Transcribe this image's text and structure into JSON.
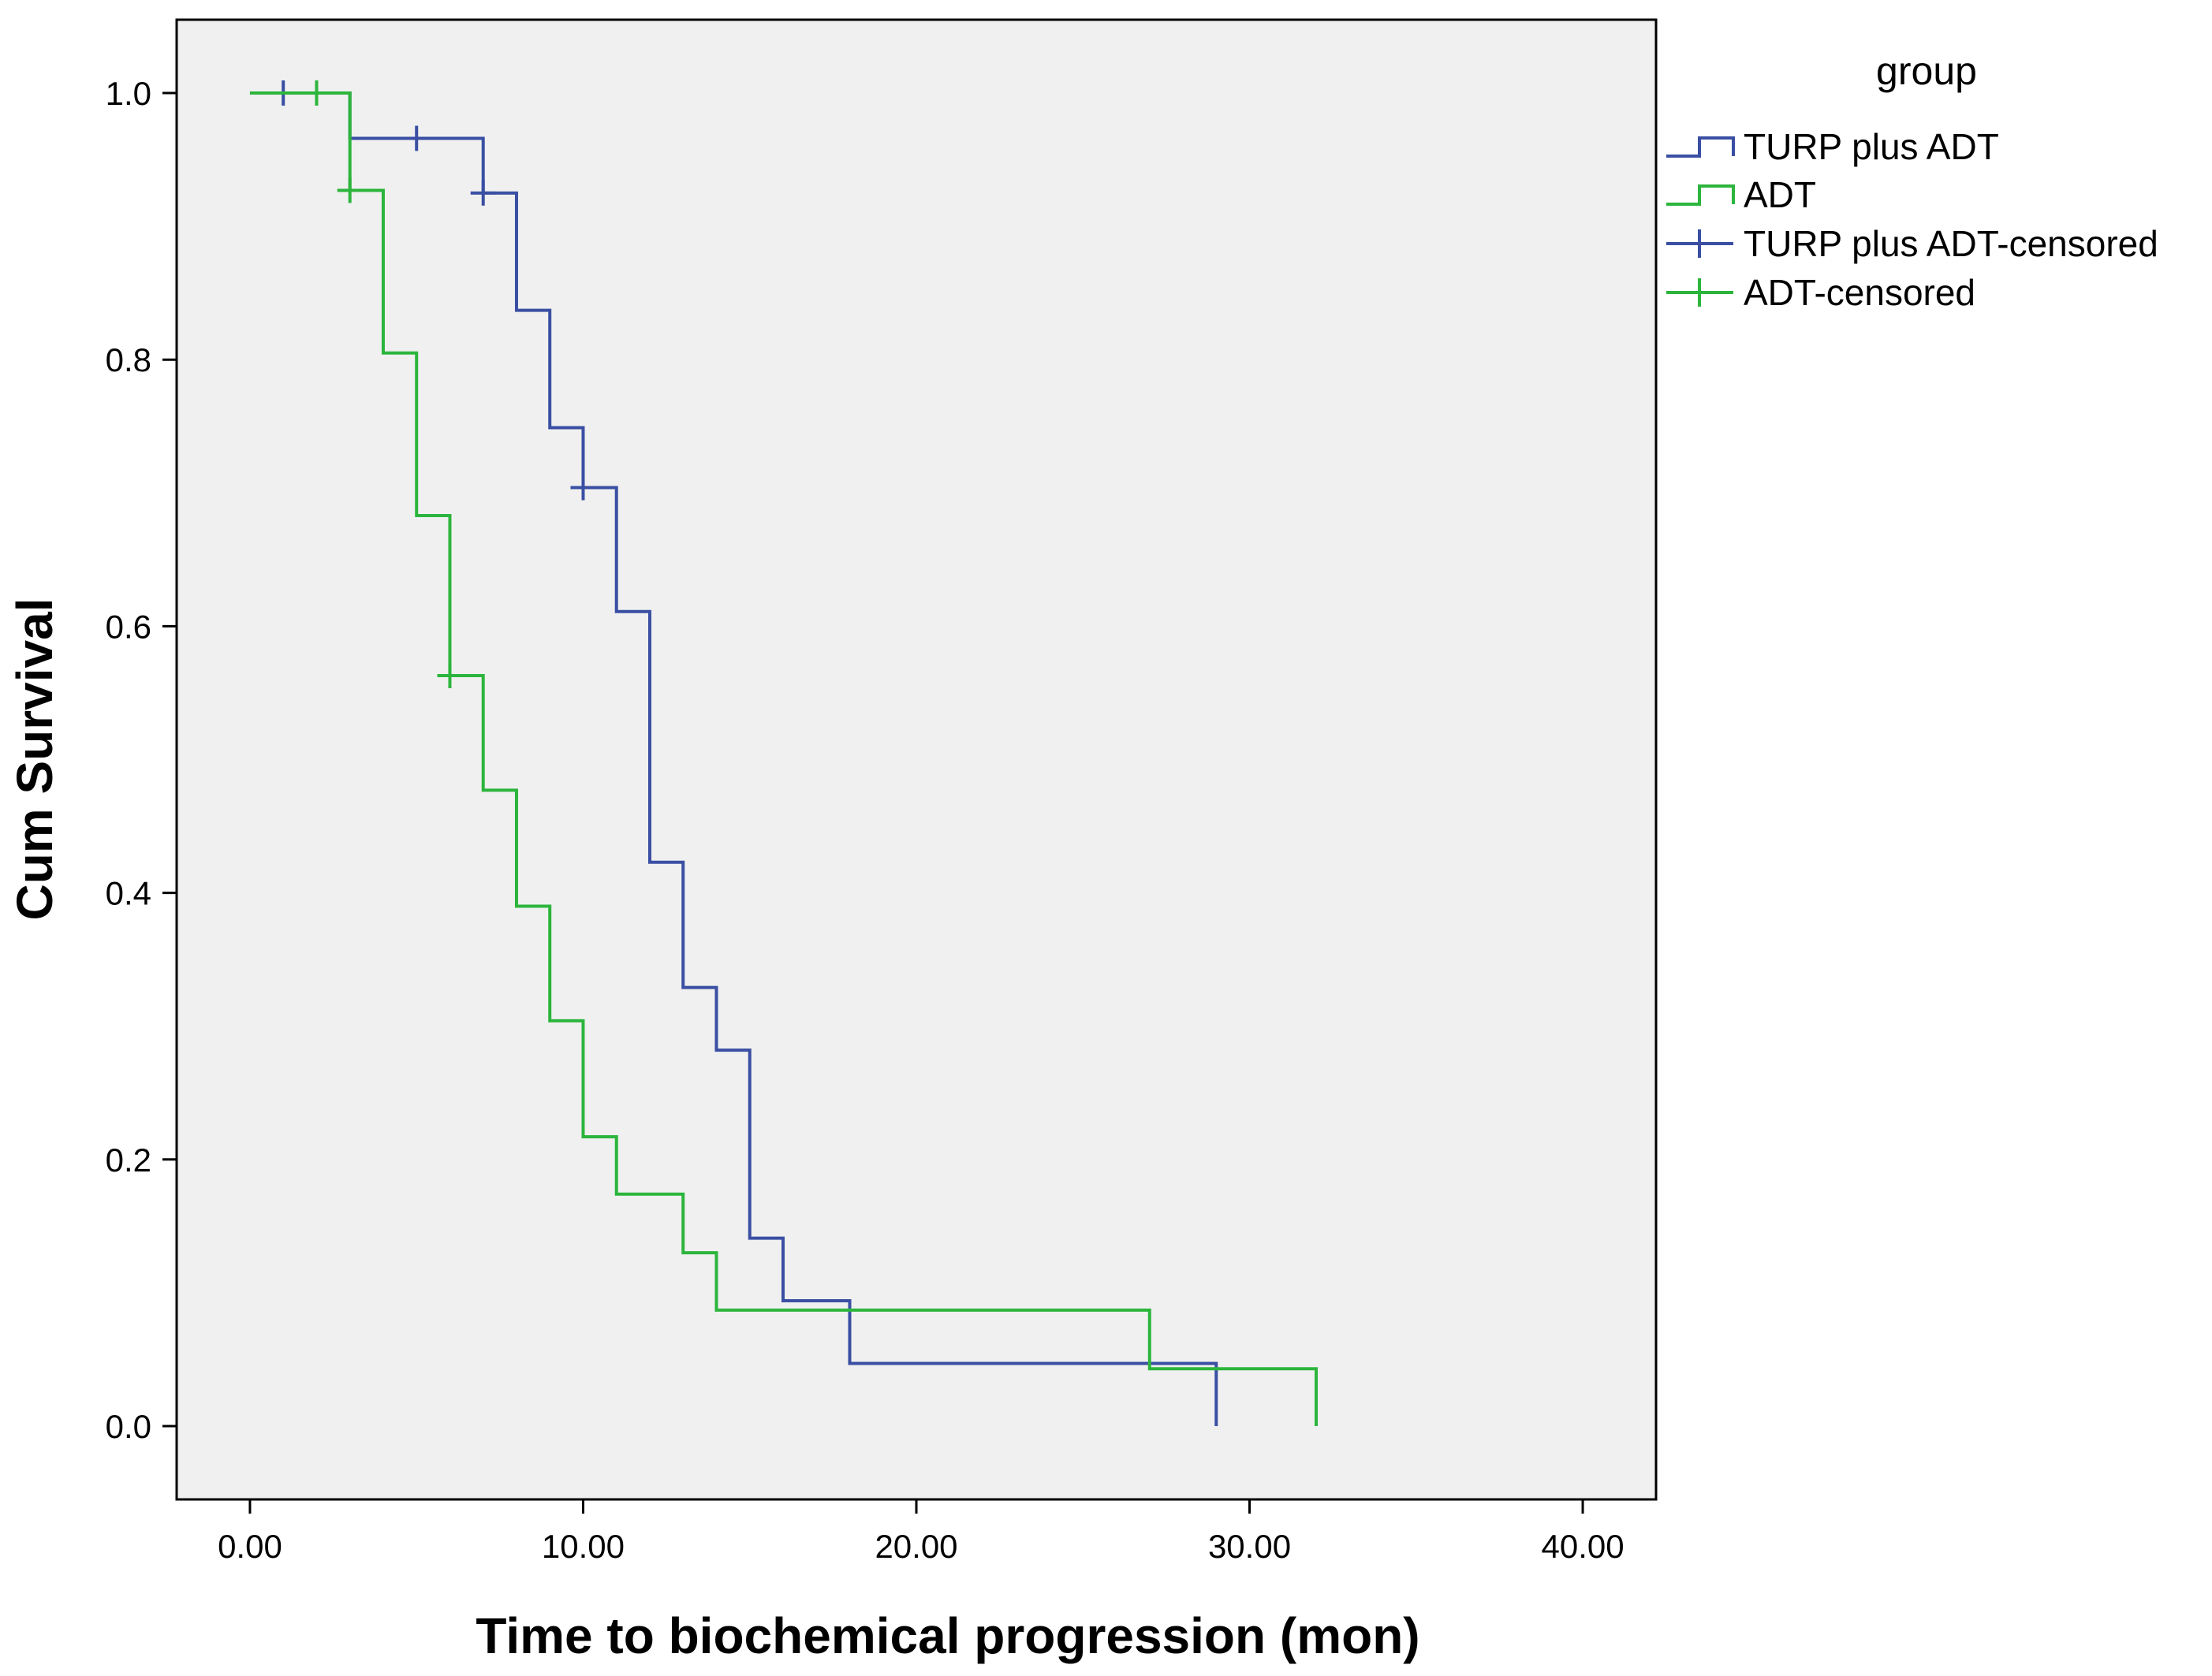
{
  "chart_data": {
    "type": "line",
    "subtype": "kaplan-meier step",
    "title": "",
    "xlabel": "Time to biochemical progression (mon)",
    "ylabel": "Cum Survival",
    "xlim": [
      -2.2,
      42.2
    ],
    "ylim": [
      -0.055,
      1.055
    ],
    "x_ticks": [
      0,
      10,
      20,
      30,
      40
    ],
    "x_tick_labels": [
      "0.00",
      "10.00",
      "20.00",
      "30.00",
      "40.00"
    ],
    "y_ticks": [
      0,
      0.2,
      0.4,
      0.6,
      0.8,
      1.0
    ],
    "y_tick_labels": [
      "0.0",
      "0.2",
      "0.4",
      "0.6",
      "0.8",
      "1.0"
    ],
    "grid": false,
    "plot_background": "#f0f0f0",
    "legend": {
      "title": "group",
      "placement": "right",
      "entries": [
        {
          "label": "TURP plus ADT",
          "kind": "step",
          "color": "#3a4fa3"
        },
        {
          "label": "ADT",
          "kind": "step",
          "color": "#2cb53c"
        },
        {
          "label": "TURP plus ADT-censored",
          "kind": "cross",
          "color": "#3a4fa3"
        },
        {
          "label": "ADT-censored",
          "kind": "cross",
          "color": "#2cb53c"
        }
      ]
    },
    "series": [
      {
        "name": "TURP plus ADT",
        "color": "#3a4fa3",
        "x": [
          0,
          3,
          7,
          8,
          9,
          10,
          11,
          12,
          13,
          14,
          15,
          16,
          18,
          29
        ],
        "y": [
          1.0,
          0.966,
          0.925,
          0.837,
          0.749,
          0.704,
          0.611,
          0.423,
          0.329,
          0.282,
          0.141,
          0.094,
          0.047,
          0.0
        ],
        "end_x": 29,
        "censored": [
          {
            "x": 1,
            "y": 1.0
          },
          {
            "x": 5,
            "y": 0.966
          },
          {
            "x": 7,
            "y": 0.925
          },
          {
            "x": 10,
            "y": 0.704
          }
        ]
      },
      {
        "name": "ADT",
        "color": "#2cb53c",
        "x": [
          0,
          3,
          4,
          5,
          6,
          7,
          8,
          9,
          10,
          11,
          13,
          14,
          27,
          32
        ],
        "y": [
          1.0,
          0.927,
          0.805,
          0.683,
          0.563,
          0.477,
          0.39,
          0.304,
          0.217,
          0.174,
          0.13,
          0.087,
          0.043,
          0.0
        ],
        "end_x": 32,
        "censored": [
          {
            "x": 2,
            "y": 1.0
          },
          {
            "x": 3,
            "y": 0.927
          },
          {
            "x": 6,
            "y": 0.563
          }
        ]
      }
    ]
  }
}
